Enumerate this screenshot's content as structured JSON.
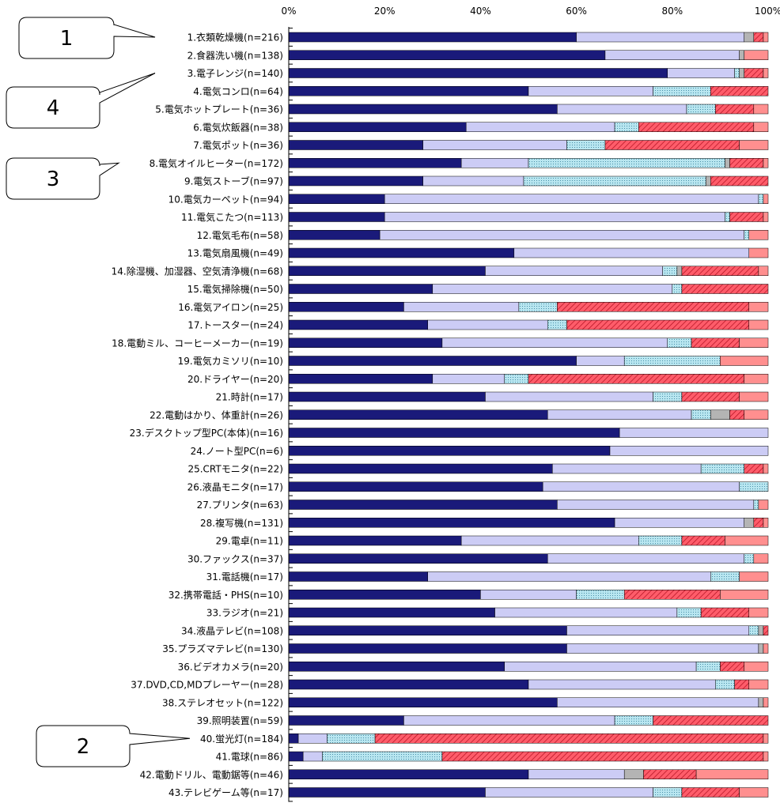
{
  "chart_data": {
    "type": "bar",
    "orientation": "horizontal",
    "stacked": true,
    "percent": true,
    "xlim": [
      0,
      100
    ],
    "xticks": [
      "0%",
      "20%",
      "40%",
      "60%",
      "80%",
      "100%"
    ],
    "legend": "none",
    "grid": false,
    "categories": [
      "1.衣類乾燥機(n=216)",
      "2.食器洗い機(n=138)",
      "3.電子レンジ(n=140)",
      "4.電気コンロ(n=64)",
      "5.電気ホットプレート(n=36)",
      "6.電気炊飯器(n=38)",
      "7.電気ポット(n=36)",
      "8.電気オイルヒーター(n=172)",
      "9.電気ストーブ(n=97)",
      "10.電気カーペット(n=94)",
      "11.電気こたつ(n=113)",
      "12.電気毛布(n=58)",
      "13.電気扇風機(n=49)",
      "14.除湿機、加湿器、空気清浄機(n=68)",
      "15.電気掃除機(n=50)",
      "16.電気アイロン(n=25)",
      "17.トースター(n=24)",
      "18.電動ミル、コーヒーメーカー(n=19)",
      "19.電気カミソリ(n=10)",
      "20.ドライヤー(n=20)",
      "21.時計(n=17)",
      "22.電動はかり、体重計(n=26)",
      "23.デスクトップ型PC(本体)(n=16)",
      "24.ノート型PC(n=6)",
      "25.CRTモニタ(n=22)",
      "26.液晶モニタ(n=17)",
      "27.プリンタ(n=63)",
      "28.複写機(n=131)",
      "29.電卓(n=11)",
      "30.ファックス(n=37)",
      "31.電話機(n=17)",
      "32.携帯電話・PHS(n=10)",
      "33.ラジオ(n=21)",
      "34.液晶テレビ(n=108)",
      "35.プラズマテレビ(n=130)",
      "36.ビデオカメラ(n=20)",
      "37.DVD,CD,MDプレーヤー(n=28)",
      "38.ステレオセット(n=122)",
      "39.照明装置(n=59)",
      "40.蛍光灯(n=184)",
      "41.電球(n=86)",
      "42.電動ドリル、電動鋸等(n=46)",
      "43.テレビゲーム等(n=17)"
    ],
    "colors": [
      "#1a1a7a",
      "#ccccf5",
      "#b8e6f0",
      "#b4b4b4",
      "#ff5c6a",
      "#ff8f8f"
    ],
    "series": [
      {
        "pattern": "solid",
        "values": [
          60,
          66,
          79,
          50,
          56,
          37,
          28,
          36,
          28,
          20,
          20,
          19,
          47,
          41,
          30,
          24,
          29,
          32,
          60,
          30,
          41,
          54,
          69,
          67,
          55,
          53,
          56,
          68,
          36,
          54,
          29,
          40,
          43,
          58,
          58,
          45,
          50,
          56,
          24,
          2,
          3,
          50,
          41
        ]
      },
      {
        "pattern": "solid",
        "values": [
          35,
          28,
          14,
          26,
          27,
          31,
          30,
          14,
          21,
          78,
          71,
          76,
          49,
          37,
          50,
          24,
          25,
          47,
          10,
          15,
          35,
          30,
          31,
          33,
          31,
          41,
          41,
          27,
          37,
          41,
          59,
          20,
          38,
          38,
          40,
          40,
          39,
          42,
          44,
          6,
          4,
          20,
          35
        ]
      },
      {
        "pattern": "dotted",
        "values": [
          0,
          0,
          1,
          12,
          6,
          5,
          8,
          41,
          38,
          1,
          1,
          1,
          0,
          3,
          2,
          8,
          4,
          5,
          20,
          5,
          6,
          4,
          0,
          0,
          9,
          6,
          1,
          0,
          9,
          2,
          6,
          10,
          5,
          2,
          0,
          5,
          4,
          0,
          8,
          10,
          25,
          0,
          6
        ]
      },
      {
        "pattern": "solid",
        "values": [
          2,
          1,
          1,
          0,
          0,
          0,
          0,
          1,
          1,
          0,
          0,
          0,
          0,
          1,
          0,
          0,
          0,
          0,
          0,
          0,
          0,
          4,
          0,
          0,
          0,
          0,
          0,
          2,
          0,
          0,
          0,
          0,
          0,
          1,
          1,
          0,
          0,
          1,
          0,
          0,
          0,
          4,
          0
        ]
      },
      {
        "pattern": "hatched",
        "values": [
          2,
          0,
          4,
          12,
          8,
          24,
          28,
          7,
          12,
          0,
          7,
          0,
          0,
          16,
          18,
          40,
          38,
          10,
          0,
          45,
          12,
          3,
          0,
          0,
          4,
          0,
          0,
          2,
          9,
          0,
          0,
          20,
          10,
          1,
          0,
          5,
          3,
          0,
          24,
          81,
          67,
          11,
          12
        ]
      },
      {
        "pattern": "solid",
        "values": [
          1,
          5,
          1,
          0,
          3,
          3,
          6,
          1,
          0,
          1,
          1,
          4,
          4,
          2,
          0,
          4,
          4,
          6,
          10,
          5,
          6,
          5,
          0,
          0,
          1,
          0,
          2,
          1,
          9,
          3,
          6,
          10,
          4,
          0,
          1,
          5,
          4,
          1,
          0,
          1,
          1,
          15,
          6
        ]
      }
    ],
    "callouts": [
      {
        "text": "1",
        "target_index": 0
      },
      {
        "text": "4",
        "target_index": 2
      },
      {
        "text": "3",
        "target_index": 7
      },
      {
        "text": "2",
        "target_index": 39
      }
    ]
  }
}
